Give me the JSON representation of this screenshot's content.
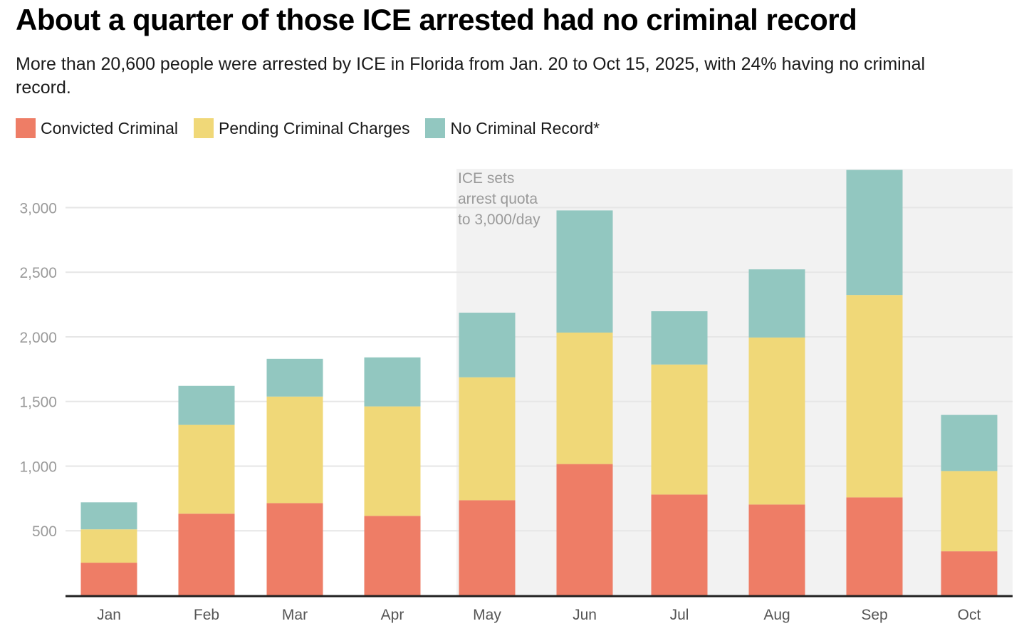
{
  "header": {
    "title": "About a quarter of those ICE arrested had no criminal record",
    "subtitle": "More than 20,600 people were arrested by ICE in Florida from Jan. 20 to Oct 15, 2025, with 24% having no criminal record."
  },
  "colors": {
    "convicted": "#EE7D66",
    "pending": "#F0D878",
    "no_record": "#92C7C0",
    "highlight_band": "#F2F2F2",
    "gridline": "#E6E6E6",
    "axis": "#222222"
  },
  "chart_data": {
    "type": "bar",
    "stacked": true,
    "title": "About a quarter of those ICE arrested had no criminal record",
    "subtitle": "More than 20,600 people were arrested by ICE in Florida from Jan. 20 to Oct 15, 2025, with 24% having no criminal record.",
    "xlabel": "",
    "ylabel": "",
    "categories": [
      "Jan",
      "Feb",
      "Mar",
      "Apr",
      "May",
      "Jun",
      "Jul",
      "Aug",
      "Sep",
      "Oct"
    ],
    "series": [
      {
        "name": "Convicted Criminal",
        "color": "#EE7D66",
        "values": [
          253,
          632,
          714,
          615,
          736,
          1016,
          780,
          703,
          758,
          341
        ]
      },
      {
        "name": "Pending Criminal Charges",
        "color": "#F0D878",
        "values": [
          258,
          687,
          824,
          847,
          951,
          1017,
          1006,
          1292,
          1566,
          621
        ]
      },
      {
        "name": "No Criminal Record*",
        "color": "#92C7C0",
        "values": [
          209,
          302,
          292,
          379,
          500,
          945,
          412,
          527,
          967,
          434
        ]
      }
    ],
    "ylim": [
      0,
      3300
    ],
    "yticks": [
      500,
      1000,
      1500,
      2000,
      2500,
      3000
    ],
    "ytick_labels": [
      "500",
      "1,000",
      "1,500",
      "2,000",
      "2,500",
      "3,000"
    ],
    "grid": true,
    "legend": {
      "position": "top-left"
    },
    "annotations": [
      {
        "text_lines": [
          "ICE sets",
          "arrest quota",
          "to 3,000/day"
        ],
        "shaded_from_category": "May",
        "shaded_to_category": "Oct"
      }
    ]
  }
}
